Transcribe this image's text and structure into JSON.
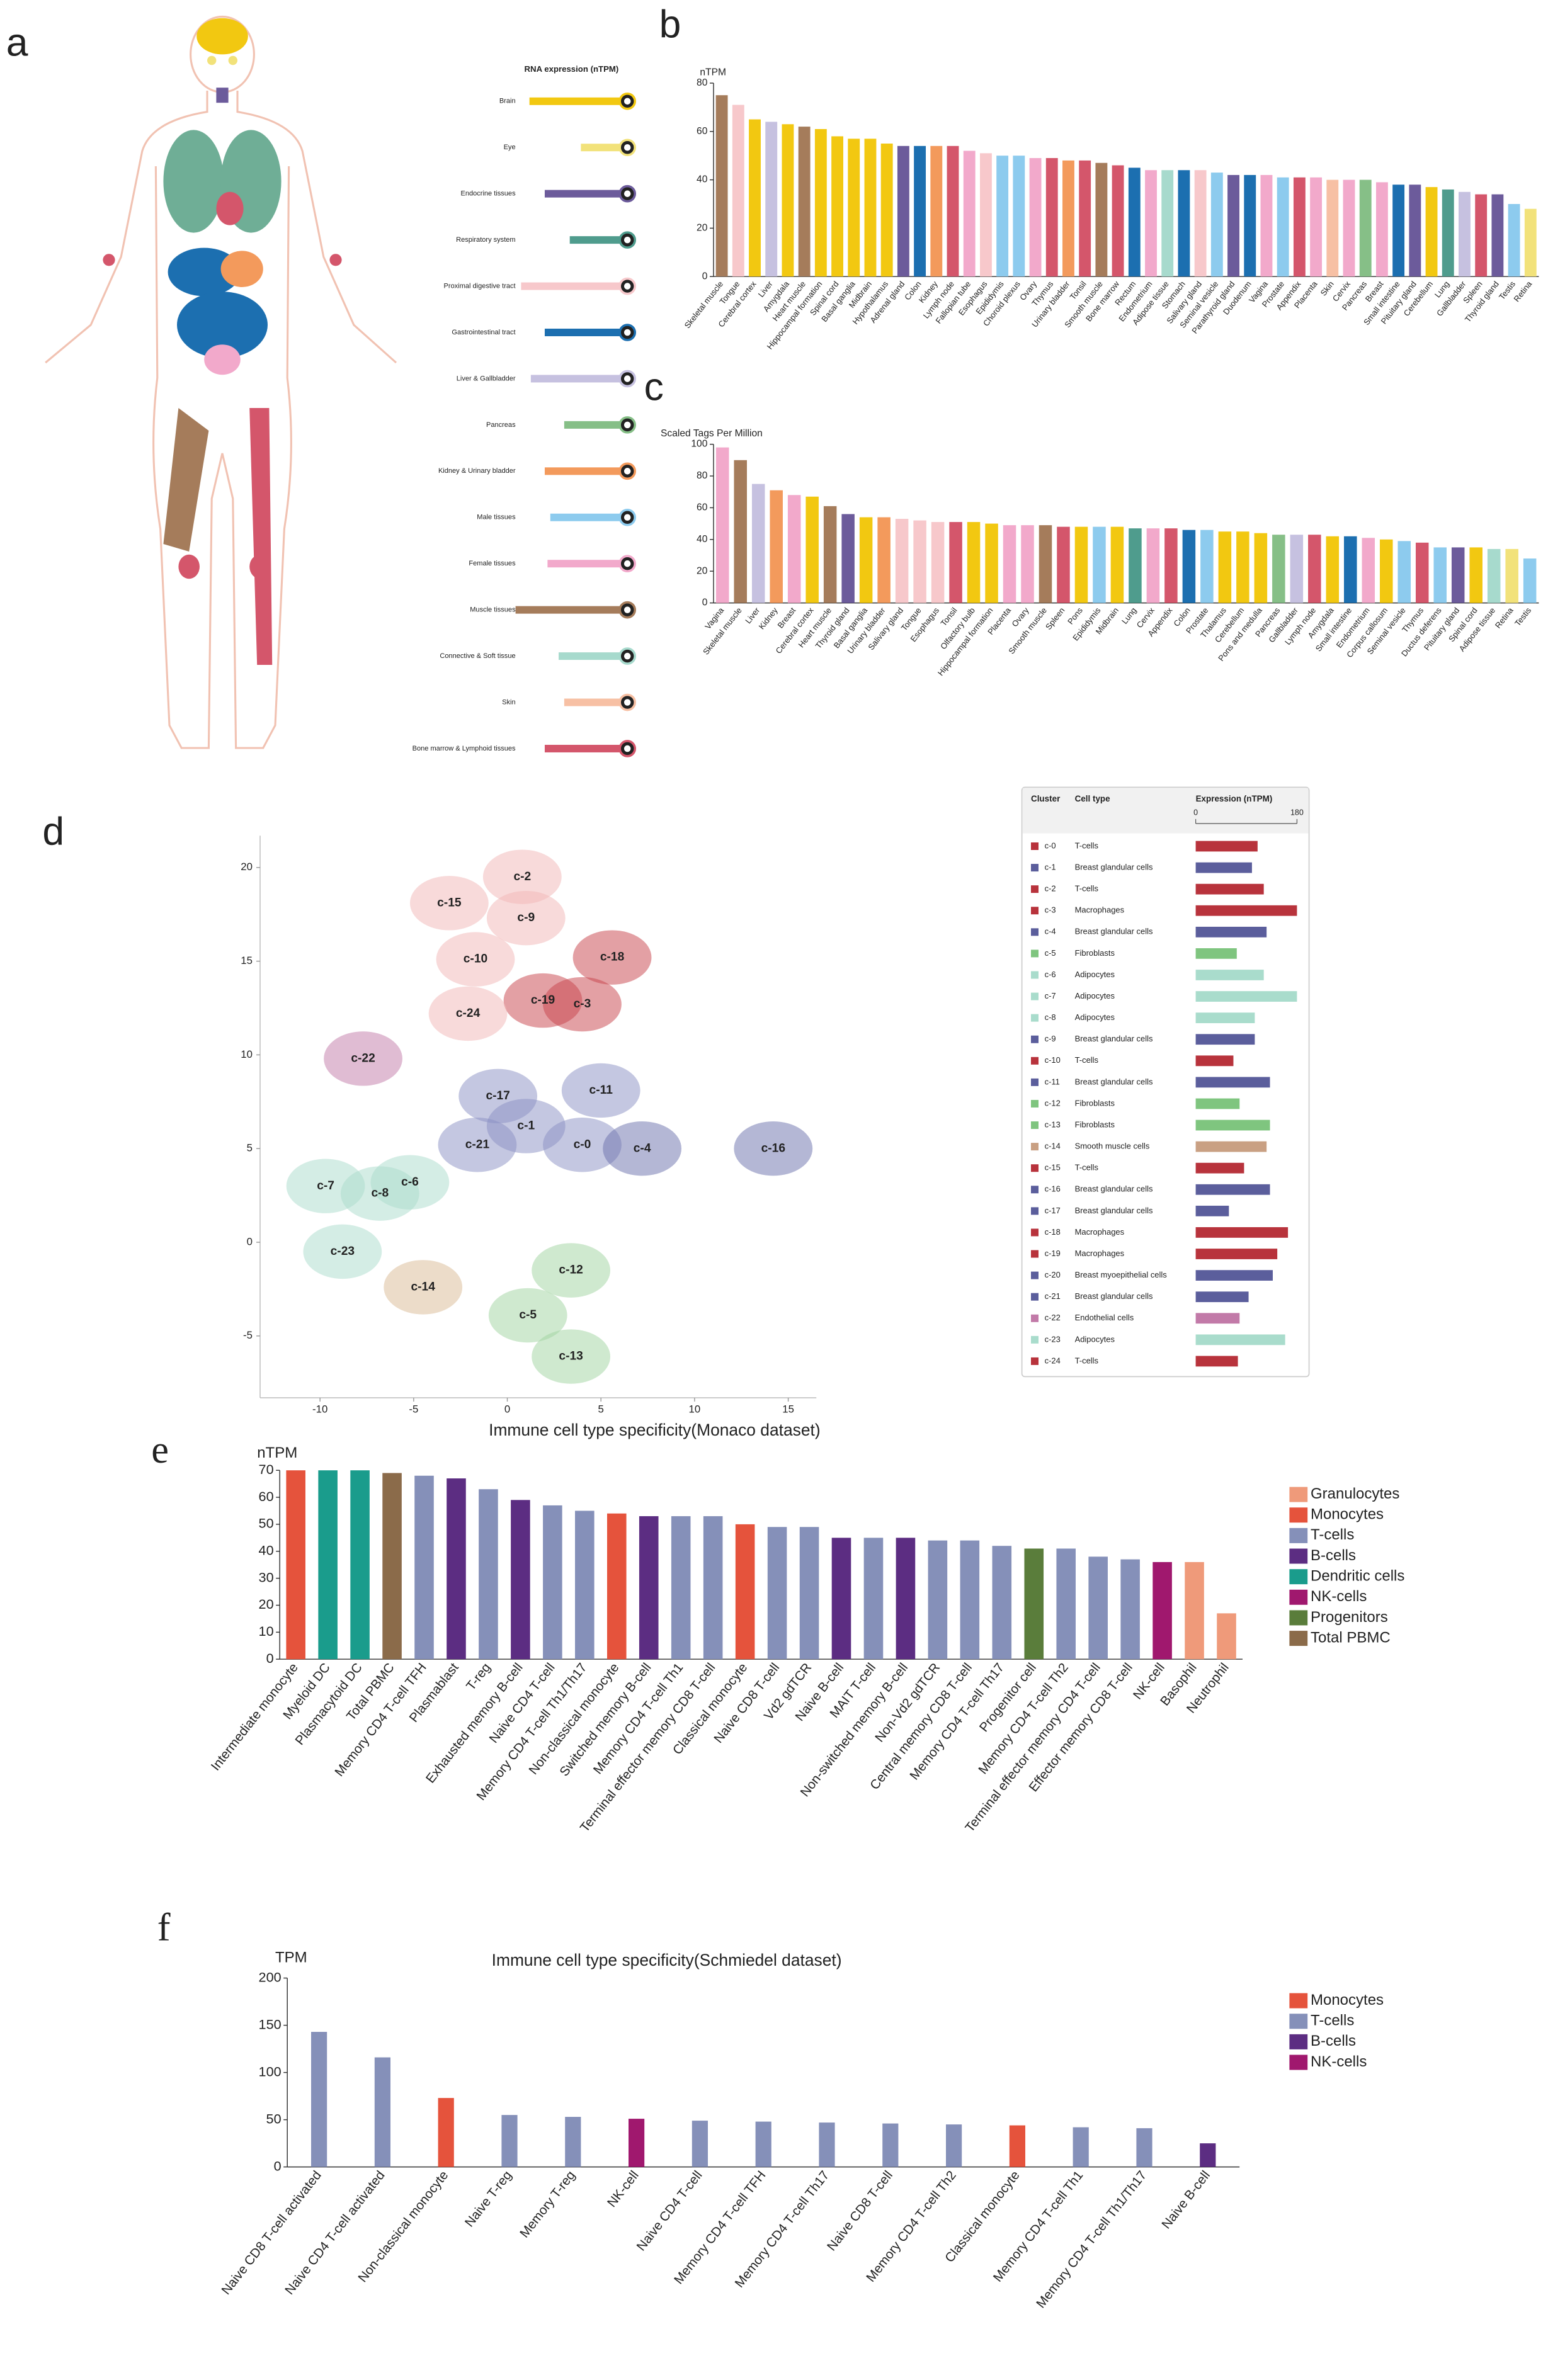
{
  "chart_data": [
    {
      "panel": "a",
      "type": "hbar",
      "title": "RNA expression (nTPM)",
      "categories": [
        "Brain",
        "Eye",
        "Endocrine tissues",
        "Respiratory system",
        "Proximal digestive tract",
        "Gastrointestinal tract",
        "Liver & Gallbladder",
        "Pancreas",
        "Kidney & Urinary bladder",
        "Male tissues",
        "Female tissues",
        "Muscle tissues",
        "Connective & Soft tissue",
        "Skin",
        "Bone marrow & Lymphoid tissues"
      ],
      "values": [
        65,
        28,
        54,
        36,
        71,
        54,
        64,
        40,
        54,
        50,
        52,
        75,
        44,
        40,
        54
      ],
      "colors": [
        "#f2c811",
        "#f2e27a",
        "#6c5b9b",
        "#4f9c8d",
        "#f7c8cb",
        "#1c6fb0",
        "#c6c1e0",
        "#86bf87",
        "#f39a5c",
        "#8dcbee",
        "#f2a9cb",
        "#a57c5b",
        "#a7dacd",
        "#f7c0a4",
        "#d4566b"
      ]
    },
    {
      "panel": "b",
      "type": "bar",
      "ylabel": "nTPM",
      "categories": [
        "Skeletal muscle",
        "Tongue",
        "Cerebral cortex",
        "Liver",
        "Amygdala",
        "Heart muscle",
        "Hippocampal formation",
        "Spinal cord",
        "Basal ganglia",
        "Midbrain",
        "Hypothalamus",
        "Adrenal gland",
        "Colon",
        "Kidney",
        "Lymph node",
        "Fallopian tube",
        "Esophagus",
        "Epididymis",
        "Choroid plexus",
        "Ovary",
        "Thymus",
        "Urinary bladder",
        "Tonsil",
        "Smooth muscle",
        "Bone marrow",
        "Rectum",
        "Endometrium",
        "Adipose tissue",
        "Stomach",
        "Salivary gland",
        "Seminal vesicle",
        "Parathyroid gland",
        "Duodenum",
        "Vagina",
        "Prostate",
        "Appendix",
        "Placenta",
        "Skin",
        "Cervix",
        "Pancreas",
        "Breast",
        "Small intestine",
        "Pituitary gland",
        "Cerebellum",
        "Lung",
        "Gallbladder",
        "Spleen",
        "Thyroid gland",
        "Testis",
        "Retina"
      ],
      "values": [
        75,
        71,
        65,
        64,
        63,
        62,
        61,
        58,
        57,
        57,
        55,
        54,
        54,
        54,
        54,
        52,
        51,
        50,
        50,
        49,
        49,
        48,
        48,
        47,
        46,
        45,
        44,
        44,
        44,
        44,
        43,
        42,
        42,
        42,
        41,
        41,
        41,
        40,
        40,
        40,
        39,
        38,
        38,
        37,
        36,
        35,
        34,
        34,
        30,
        28
      ],
      "colors": [
        "#a57c5b",
        "#f7c8cb",
        "#f2c811",
        "#c6c1e0",
        "#f2c811",
        "#a57c5b",
        "#f2c811",
        "#f2c811",
        "#f2c811",
        "#f2c811",
        "#f2c811",
        "#6c5b9b",
        "#1c6fb0",
        "#f39a5c",
        "#d4566b",
        "#f2a9cb",
        "#f7c8cb",
        "#8dcbee",
        "#8dcbee",
        "#f2a9cb",
        "#d4566b",
        "#f39a5c",
        "#d4566b",
        "#a57c5b",
        "#d4566b",
        "#1c6fb0",
        "#f2a9cb",
        "#a7dacd",
        "#1c6fb0",
        "#f7c8cb",
        "#8dcbee",
        "#6c5b9b",
        "#1c6fb0",
        "#f2a9cb",
        "#8dcbee",
        "#d4566b",
        "#f2a9cb",
        "#f7c0a4",
        "#f2a9cb",
        "#86bf87",
        "#f2a9cb",
        "#1c6fb0",
        "#6c5b9b",
        "#f2c811",
        "#4f9c8d",
        "#c6c1e0",
        "#d4566b",
        "#6c5b9b",
        "#8dcbee",
        "#f2e27a"
      ],
      "ylim": [
        0,
        80
      ],
      "yticks": [
        0,
        20,
        40,
        60,
        80
      ]
    },
    {
      "panel": "c",
      "type": "bar",
      "ylabel": "Scaled Tags Per Million",
      "categories": [
        "Vagina",
        "Skeletal muscle",
        "Liver",
        "Kidney",
        "Breast",
        "Cerebral cortex",
        "Heart muscle",
        "Thyroid gland",
        "Basal ganglia",
        "Urinary bladder",
        "Salivary gland",
        "Tongue",
        "Esophagus",
        "Tonsil",
        "Olfactory bulb",
        "Hippocampal formation",
        "Placenta",
        "Ovary",
        "Smooth muscle",
        "Spleen",
        "Pons",
        "Epididymis",
        "Midbrain",
        "Lung",
        "Cervix",
        "Appendix",
        "Colon",
        "Prostate",
        "Thalamus",
        "Cerebellum",
        "Pons and medulla",
        "Pancreas",
        "Gallbladder",
        "Lymph node",
        "Amygdala",
        "Small intestine",
        "Endometrium",
        "Corpus callosum",
        "Seminal vesicle",
        "Thymus",
        "Ductus deferens",
        "Pituitary gland",
        "Spinal cord",
        "Adipose tissue",
        "Retina",
        "Testis"
      ],
      "values": [
        98,
        90,
        75,
        71,
        68,
        67,
        61,
        56,
        54,
        54,
        53,
        52,
        51,
        51,
        51,
        50,
        49,
        49,
        49,
        48,
        48,
        48,
        48,
        47,
        47,
        47,
        46,
        46,
        45,
        45,
        44,
        43,
        43,
        43,
        42,
        42,
        41,
        40,
        39,
        38,
        35,
        35,
        35,
        34,
        34,
        28
      ],
      "colors": [
        "#f2a9cb",
        "#a57c5b",
        "#c6c1e0",
        "#f39a5c",
        "#f2a9cb",
        "#f2c811",
        "#a57c5b",
        "#6c5b9b",
        "#f2c811",
        "#f39a5c",
        "#f7c8cb",
        "#f7c8cb",
        "#f7c8cb",
        "#d4566b",
        "#f2c811",
        "#f2c811",
        "#f2a9cb",
        "#f2a9cb",
        "#a57c5b",
        "#d4566b",
        "#f2c811",
        "#8dcbee",
        "#f2c811",
        "#4f9c8d",
        "#f2a9cb",
        "#d4566b",
        "#1c6fb0",
        "#8dcbee",
        "#f2c811",
        "#f2c811",
        "#f2c811",
        "#86bf87",
        "#c6c1e0",
        "#d4566b",
        "#f2c811",
        "#1c6fb0",
        "#f2a9cb",
        "#f2c811",
        "#8dcbee",
        "#d4566b",
        "#8dcbee",
        "#6c5b9b",
        "#f2c811",
        "#a7dacd",
        "#f2e27a",
        "#8dcbee"
      ],
      "ylim": [
        0,
        100
      ],
      "yticks": [
        0,
        20,
        40,
        60,
        80,
        100
      ]
    },
    {
      "panel": "d",
      "type": "scatter",
      "labels": [
        "c-0",
        "c-1",
        "c-2",
        "c-3",
        "c-4",
        "c-5",
        "c-6",
        "c-7",
        "c-8",
        "c-9",
        "c-10",
        "c-11",
        "c-12",
        "c-13",
        "c-14",
        "c-15",
        "c-16",
        "c-17",
        "c-18",
        "c-19",
        "c-21",
        "c-22",
        "c-23",
        "c-24"
      ],
      "x": [
        4.0,
        1.0,
        0.8,
        4.0,
        7.2,
        1.1,
        -5.2,
        -9.7,
        -6.8,
        1.0,
        -1.7,
        5.0,
        3.4,
        3.4,
        -4.5,
        -3.1,
        14.2,
        -0.5,
        5.6,
        1.9,
        -1.6,
        -7.7,
        -8.8,
        -2.1
      ],
      "values": [
        5.2,
        6.2,
        19.5,
        12.7,
        5.0,
        -3.9,
        3.2,
        3.0,
        2.6,
        17.3,
        15.1,
        8.1,
        -1.5,
        -6.1,
        -2.4,
        18.1,
        5.0,
        7.8,
        15.2,
        12.9,
        5.2,
        9.8,
        -0.5,
        12.2
      ],
      "colors": [
        "#8a8fc4",
        "#8a8fc4",
        "#f2b6b6",
        "#c8424a",
        "#6a70ac",
        "#9fd49f",
        "#a9dccc",
        "#a9dccc",
        "#a9dccc",
        "#f2b6b6",
        "#f2b6b6",
        "#8a8fc4",
        "#9fd49f",
        "#9fd49f",
        "#d9b994",
        "#f2b6b6",
        "#6a70ac",
        "#8a8fc4",
        "#c8424a",
        "#c8424a",
        "#8a8fc4",
        "#c27aa8",
        "#a9dccc",
        "#f2b6b6"
      ],
      "xlim": [
        -13.2,
        16.5
      ],
      "ylim": [
        -8.3,
        21.7
      ],
      "xticks": [
        -10,
        -5,
        0,
        5,
        10,
        15
      ],
      "yticks": [
        -5,
        0,
        5,
        10,
        15,
        20
      ]
    },
    {
      "type": "table",
      "columns": [
        "Cluster",
        "Cell type",
        "Expression (nTPM)"
      ],
      "clusters": [
        "c-0",
        "c-1",
        "c-2",
        "c-3",
        "c-4",
        "c-5",
        "c-6",
        "c-7",
        "c-8",
        "c-9",
        "c-10",
        "c-11",
        "c-12",
        "c-13",
        "c-14",
        "c-15",
        "c-16",
        "c-17",
        "c-18",
        "c-19",
        "c-20",
        "c-21",
        "c-22",
        "c-23",
        "c-24"
      ],
      "cell_types": [
        "T-cells",
        "Breast glandular cells",
        "T-cells",
        "Macrophages",
        "Breast glandular cells",
        "Fibroblasts",
        "Adipocytes",
        "Adipocytes",
        "Adipocytes",
        "Breast glandular cells",
        "T-cells",
        "Breast glandular cells",
        "Fibroblasts",
        "Fibroblasts",
        "Smooth muscle cells",
        "T-cells",
        "Breast glandular cells",
        "Breast glandular cells",
        "Macrophages",
        "Macrophages",
        "Breast myoepithelial cells",
        "Breast glandular cells",
        "Endothelial cells",
        "Adipocytes",
        "T-cells"
      ],
      "values": [
        110,
        100,
        121,
        180,
        126,
        73,
        121,
        180,
        105,
        105,
        67,
        132,
        78,
        132,
        126,
        86,
        132,
        59,
        164,
        145,
        137,
        94,
        78,
        159,
        75
      ],
      "colors": [
        "#b8333c",
        "#5b5e9c",
        "#b8333c",
        "#b8333c",
        "#5b5e9c",
        "#7fc57f",
        "#a9dccc",
        "#a9dccc",
        "#a9dccc",
        "#5b5e9c",
        "#b8333c",
        "#5b5e9c",
        "#7fc57f",
        "#7fc57f",
        "#c9a083",
        "#b8333c",
        "#5b5e9c",
        "#5b5e9c",
        "#b8333c",
        "#b8333c",
        "#5b5e9c",
        "#5b5e9c",
        "#c27aa8",
        "#a9dccc",
        "#b8333c"
      ],
      "xlim": [
        0,
        180
      ],
      "xticks": [
        0,
        180
      ]
    },
    {
      "panel": "e",
      "type": "bar",
      "title": "Immune cell type specificity(Monaco dataset)",
      "ylabel": "nTPM",
      "categories": [
        "Intermediate monocyte",
        "Myeloid DC",
        "Plasmacytoid DC",
        "Total PBMC",
        "Memory CD4 T-cell TFH",
        "Plasmablast",
        "T-reg",
        "Exhausted memory B-cell",
        "Naive CD4 T-cell",
        "Memory CD4 T-cell Th1/Th17",
        "Non-classical monocyte",
        "Switched memory B-cell",
        "Memory CD4 T-cell Th1",
        "Terminal effector memory CD8 T-cell",
        "Classical monocyte",
        "Naive CD8 T-cell",
        "Vd2 gdTCR",
        "Naive B-cell",
        "MAIT T-cell",
        "Non-switched memory B-cell",
        "Non-Vd2 gdTCR",
        "Central memory CD8 T-cell",
        "Memory CD4 T-cell Th17",
        "Progenitor cell",
        "Memory CD4 T-cell Th2",
        "Terminal effector memory CD4 T-cell",
        "Effector memory CD8 T-cell",
        "NK-cell",
        "Basophil",
        "Neutrophil"
      ],
      "values": [
        70,
        70,
        70,
        69,
        68,
        67,
        63,
        59,
        57,
        55,
        54,
        53,
        53,
        53,
        50,
        49,
        49,
        45,
        45,
        45,
        44,
        44,
        42,
        41,
        41,
        38,
        37,
        36,
        36,
        17
      ],
      "colors": [
        "#e5533c",
        "#1a9c8c",
        "#1a9c8c",
        "#8b6b4a",
        "#8590b9",
        "#5c2d82",
        "#8590b9",
        "#5c2d82",
        "#8590b9",
        "#8590b9",
        "#e5533c",
        "#5c2d82",
        "#8590b9",
        "#8590b9",
        "#e5533c",
        "#8590b9",
        "#8590b9",
        "#5c2d82",
        "#8590b9",
        "#5c2d82",
        "#8590b9",
        "#8590b9",
        "#8590b9",
        "#5a7d3b",
        "#8590b9",
        "#8590b9",
        "#8590b9",
        "#a0186e",
        "#ef9a7a",
        "#ef9a7a"
      ],
      "legend": [
        {
          "name": "Granulocytes",
          "color": "#ef9a7a"
        },
        {
          "name": "Monocytes",
          "color": "#e5533c"
        },
        {
          "name": "T-cells",
          "color": "#8590b9"
        },
        {
          "name": "B-cells",
          "color": "#5c2d82"
        },
        {
          "name": "Dendritic cells",
          "color": "#1a9c8c"
        },
        {
          "name": "NK-cells",
          "color": "#a0186e"
        },
        {
          "name": "Progenitors",
          "color": "#5a7d3b"
        },
        {
          "name": "Total PBMC",
          "color": "#8b6b4a"
        }
      ],
      "ylim": [
        0,
        70
      ],
      "yticks": [
        0,
        10,
        20,
        30,
        40,
        50,
        60,
        70
      ]
    },
    {
      "panel": "f",
      "type": "bar",
      "title": "Immune cell type specificity(Schmiedel dataset)",
      "ylabel": "TPM",
      "categories": [
        "Naive CD8 T-cell activated",
        "Naive CD4 T-cell activated",
        "Non-classical monocyte",
        "Naive T-reg",
        "Memory T-reg",
        "NK-cell",
        "Naive CD4 T-cell",
        "Memory CD4 T-cell TFH",
        "Memory CD4 T-cell Th17",
        "Naive CD8 T-cell",
        "Memory CD4 T-cell Th2",
        "Classical monocyte",
        "Memory CD4 T-cell Th1",
        "Memory CD4 T-cell Th1/Th17",
        "Naive B-cell"
      ],
      "values": [
        143,
        116,
        73,
        55,
        53,
        51,
        49,
        48,
        47,
        46,
        45,
        44,
        42,
        41,
        25
      ],
      "colors": [
        "#8590b9",
        "#8590b9",
        "#e5533c",
        "#8590b9",
        "#8590b9",
        "#a0186e",
        "#8590b9",
        "#8590b9",
        "#8590b9",
        "#8590b9",
        "#8590b9",
        "#e5533c",
        "#8590b9",
        "#8590b9",
        "#5c2d82"
      ],
      "legend": [
        {
          "name": "Monocytes",
          "color": "#e5533c"
        },
        {
          "name": "T-cells",
          "color": "#8590b9"
        },
        {
          "name": "B-cells",
          "color": "#5c2d82"
        },
        {
          "name": "NK-cells",
          "color": "#a0186e"
        }
      ],
      "ylim": [
        0,
        200
      ],
      "yticks": [
        0,
        50,
        100,
        150,
        200
      ]
    }
  ]
}
